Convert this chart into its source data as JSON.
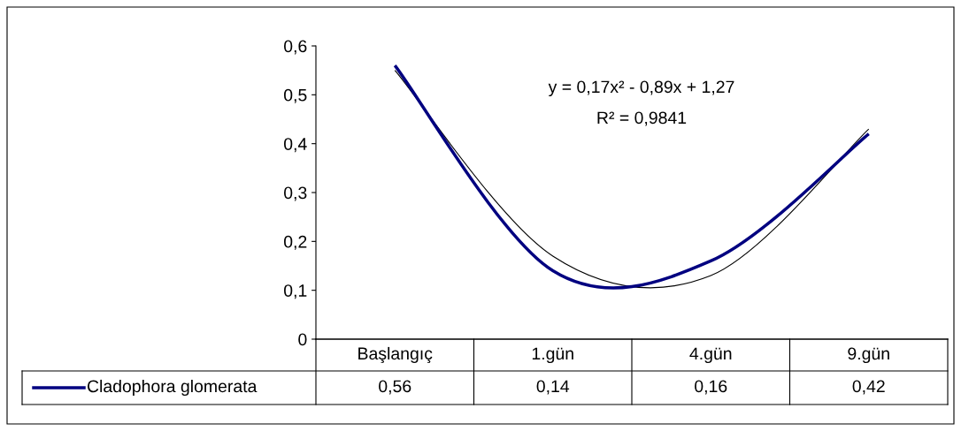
{
  "chart_data": {
    "type": "line",
    "categories": [
      "Başlangıç",
      "1.gün",
      "4.gün",
      "9.gün"
    ],
    "series": [
      {
        "name": "Cladophora glomerata",
        "color": "#000080",
        "values": [
          0.56,
          0.14,
          0.16,
          0.42
        ],
        "value_labels": [
          "0,56",
          "0,14",
          "0,16",
          "0,42"
        ]
      },
      {
        "type": "line",
        "color": "#000000",
        "values": [
          0.55,
          0.17,
          0.13,
          0.43
        ]
      }
    ],
    "ylim": [
      0,
      0.6
    ],
    "yticks": [
      0,
      {
        "value": 0.1,
        "label": "0,1"
      },
      {
        "value": 0.2,
        "label": "0,2"
      },
      {
        "value": 0.3,
        "label": "0,3"
      },
      {
        "value": 0.4,
        "label": "0,4"
      },
      {
        "value": 0.5,
        "label": "0,5"
      },
      {
        "value": 0.6,
        "label": "0,6"
      }
    ],
    "annotations": [
      "y = 0,17x² - 0,89x + 1,27",
      "R² = 0,9841"
    ],
    "legend": "bottom left",
    "grid": false,
    "marker": "none"
  }
}
